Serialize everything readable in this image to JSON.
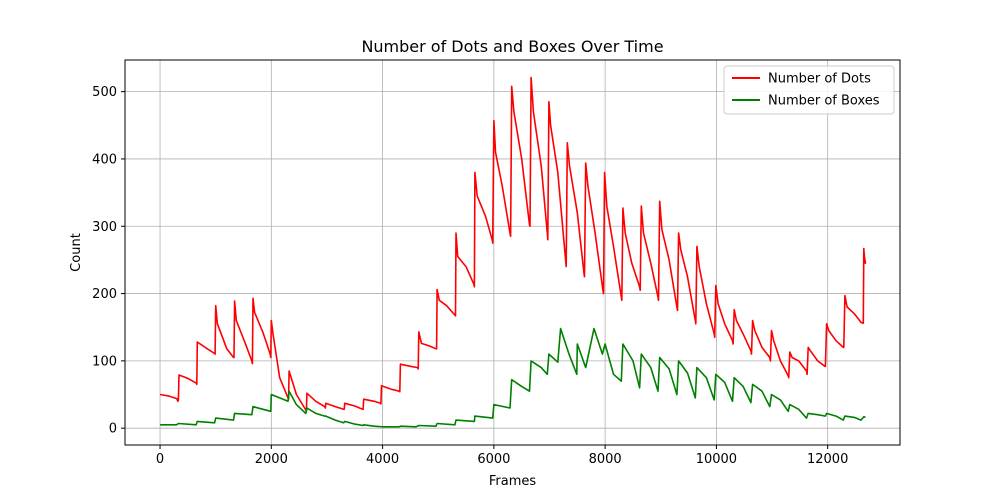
{
  "chart_data": {
    "type": "line",
    "title": "Number of Dots and Boxes Over Time",
    "xlabel": "Frames",
    "ylabel": "Count",
    "xlim": [
      -630,
      13300
    ],
    "ylim": [
      -25,
      547
    ],
    "xticks": [
      0,
      2000,
      4000,
      6000,
      8000,
      10000,
      12000
    ],
    "yticks": [
      0,
      100,
      200,
      300,
      400,
      500
    ],
    "grid": true,
    "legend_position": "top-right",
    "series": [
      {
        "name": "Number of Dots",
        "color": "#ff0000",
        "points": [
          [
            0,
            50
          ],
          [
            150,
            48
          ],
          [
            300,
            44
          ],
          [
            320,
            40
          ],
          [
            330,
            42
          ],
          [
            340,
            79
          ],
          [
            500,
            74
          ],
          [
            650,
            67
          ],
          [
            660,
            65
          ],
          [
            670,
            128
          ],
          [
            850,
            118
          ],
          [
            980,
            111
          ],
          [
            990,
            110
          ],
          [
            1000,
            182
          ],
          [
            1030,
            155
          ],
          [
            1200,
            118
          ],
          [
            1320,
            105
          ],
          [
            1330,
            105
          ],
          [
            1340,
            189
          ],
          [
            1370,
            160
          ],
          [
            1550,
            122
          ],
          [
            1650,
            100
          ],
          [
            1660,
            96
          ],
          [
            1670,
            193
          ],
          [
            1700,
            172
          ],
          [
            1850,
            142
          ],
          [
            1980,
            110
          ],
          [
            1990,
            105
          ],
          [
            2000,
            160
          ],
          [
            2030,
            140
          ],
          [
            2150,
            75
          ],
          [
            2300,
            45
          ],
          [
            2310,
            43
          ],
          [
            2320,
            85
          ],
          [
            2450,
            50
          ],
          [
            2620,
            27
          ],
          [
            2630,
            25
          ],
          [
            2640,
            52
          ],
          [
            2800,
            40
          ],
          [
            2960,
            32
          ],
          [
            2970,
            30
          ],
          [
            2980,
            37
          ],
          [
            3150,
            32
          ],
          [
            3300,
            28
          ],
          [
            3310,
            28
          ],
          [
            3320,
            37
          ],
          [
            3500,
            33
          ],
          [
            3640,
            28
          ],
          [
            3650,
            28
          ],
          [
            3660,
            43
          ],
          [
            3850,
            40
          ],
          [
            3960,
            37
          ],
          [
            3970,
            36
          ],
          [
            3980,
            63
          ],
          [
            4150,
            58
          ],
          [
            4300,
            55
          ],
          [
            4310,
            54
          ],
          [
            4320,
            95
          ],
          [
            4500,
            92
          ],
          [
            4630,
            90
          ],
          [
            4640,
            88
          ],
          [
            4650,
            143
          ],
          [
            4700,
            126
          ],
          [
            4850,
            122
          ],
          [
            4960,
            118
          ],
          [
            4970,
            118
          ],
          [
            4980,
            206
          ],
          [
            5020,
            190
          ],
          [
            5150,
            182
          ],
          [
            5300,
            168
          ],
          [
            5310,
            167
          ],
          [
            5320,
            290
          ],
          [
            5350,
            255
          ],
          [
            5500,
            240
          ],
          [
            5640,
            214
          ],
          [
            5650,
            210
          ],
          [
            5660,
            380
          ],
          [
            5700,
            345
          ],
          [
            5850,
            315
          ],
          [
            5970,
            280
          ],
          [
            5980,
            275
          ],
          [
            6000,
            457
          ],
          [
            6030,
            410
          ],
          [
            6150,
            360
          ],
          [
            6290,
            290
          ],
          [
            6300,
            285
          ],
          [
            6320,
            508
          ],
          [
            6360,
            470
          ],
          [
            6500,
            400
          ],
          [
            6640,
            302
          ],
          [
            6650,
            300
          ],
          [
            6670,
            521
          ],
          [
            6710,
            470
          ],
          [
            6850,
            390
          ],
          [
            6960,
            290
          ],
          [
            6970,
            280
          ],
          [
            6990,
            485
          ],
          [
            7020,
            450
          ],
          [
            7150,
            380
          ],
          [
            7290,
            250
          ],
          [
            7300,
            240
          ],
          [
            7320,
            424
          ],
          [
            7360,
            390
          ],
          [
            7500,
            320
          ],
          [
            7620,
            230
          ],
          [
            7630,
            225
          ],
          [
            7650,
            394
          ],
          [
            7690,
            360
          ],
          [
            7820,
            290
          ],
          [
            7960,
            205
          ],
          [
            7970,
            200
          ],
          [
            7990,
            380
          ],
          [
            8030,
            330
          ],
          [
            8150,
            270
          ],
          [
            8290,
            195
          ],
          [
            8300,
            190
          ],
          [
            8320,
            327
          ],
          [
            8360,
            290
          ],
          [
            8480,
            245
          ],
          [
            8620,
            210
          ],
          [
            8630,
            205
          ],
          [
            8650,
            330
          ],
          [
            8690,
            290
          ],
          [
            8820,
            245
          ],
          [
            8950,
            195
          ],
          [
            8960,
            190
          ],
          [
            8980,
            337
          ],
          [
            9020,
            295
          ],
          [
            9150,
            250
          ],
          [
            9290,
            180
          ],
          [
            9300,
            175
          ],
          [
            9320,
            290
          ],
          [
            9360,
            265
          ],
          [
            9480,
            225
          ],
          [
            9620,
            160
          ],
          [
            9630,
            155
          ],
          [
            9650,
            270
          ],
          [
            9690,
            240
          ],
          [
            9820,
            185
          ],
          [
            9960,
            140
          ],
          [
            9970,
            135
          ],
          [
            9990,
            212
          ],
          [
            10030,
            185
          ],
          [
            10150,
            155
          ],
          [
            10290,
            130
          ],
          [
            10300,
            125
          ],
          [
            10320,
            176
          ],
          [
            10360,
            160
          ],
          [
            10480,
            140
          ],
          [
            10620,
            115
          ],
          [
            10630,
            110
          ],
          [
            10650,
            160
          ],
          [
            10690,
            145
          ],
          [
            10820,
            120
          ],
          [
            10960,
            105
          ],
          [
            10970,
            100
          ],
          [
            10990,
            145
          ],
          [
            11030,
            130
          ],
          [
            11150,
            100
          ],
          [
            11290,
            78
          ],
          [
            11300,
            75
          ],
          [
            11320,
            113
          ],
          [
            11360,
            105
          ],
          [
            11480,
            100
          ],
          [
            11620,
            85
          ],
          [
            11630,
            80
          ],
          [
            11650,
            120
          ],
          [
            11690,
            115
          ],
          [
            11820,
            100
          ],
          [
            11950,
            92
          ],
          [
            11960,
            92
          ],
          [
            11980,
            155
          ],
          [
            12020,
            145
          ],
          [
            12150,
            130
          ],
          [
            12280,
            120
          ],
          [
            12290,
            120
          ],
          [
            12310,
            197
          ],
          [
            12350,
            180
          ],
          [
            12480,
            170
          ],
          [
            12600,
            157
          ],
          [
            12640,
            156
          ],
          [
            12650,
            267
          ],
          [
            12660,
            255
          ],
          [
            12680,
            244
          ]
        ]
      },
      {
        "name": "Number of Boxes",
        "color": "#008000",
        "points": [
          [
            0,
            5
          ],
          [
            300,
            5
          ],
          [
            330,
            7
          ],
          [
            650,
            5
          ],
          [
            670,
            10
          ],
          [
            980,
            8
          ],
          [
            1000,
            15
          ],
          [
            1320,
            12
          ],
          [
            1340,
            22
          ],
          [
            1650,
            20
          ],
          [
            1670,
            32
          ],
          [
            1850,
            28
          ],
          [
            1990,
            25
          ],
          [
            2000,
            50
          ],
          [
            2150,
            45
          ],
          [
            2300,
            40
          ],
          [
            2320,
            55
          ],
          [
            2450,
            35
          ],
          [
            2620,
            22
          ],
          [
            2640,
            30
          ],
          [
            2800,
            22
          ],
          [
            2960,
            18
          ],
          [
            2980,
            18
          ],
          [
            3150,
            12
          ],
          [
            3300,
            8
          ],
          [
            3320,
            10
          ],
          [
            3500,
            6
          ],
          [
            3650,
            4
          ],
          [
            3660,
            5
          ],
          [
            3850,
            3
          ],
          [
            4000,
            2
          ],
          [
            4300,
            2
          ],
          [
            4320,
            3
          ],
          [
            4600,
            2
          ],
          [
            4650,
            4
          ],
          [
            4960,
            3
          ],
          [
            4980,
            7
          ],
          [
            5300,
            5
          ],
          [
            5320,
            12
          ],
          [
            5650,
            10
          ],
          [
            5660,
            18
          ],
          [
            5980,
            15
          ],
          [
            6000,
            35
          ],
          [
            6290,
            30
          ],
          [
            6320,
            72
          ],
          [
            6500,
            62
          ],
          [
            6640,
            55
          ],
          [
            6670,
            100
          ],
          [
            6850,
            90
          ],
          [
            6960,
            80
          ],
          [
            6990,
            110
          ],
          [
            7150,
            98
          ],
          [
            7200,
            148
          ],
          [
            7350,
            110
          ],
          [
            7490,
            80
          ],
          [
            7500,
            125
          ],
          [
            7650,
            90
          ],
          [
            7800,
            148
          ],
          [
            7950,
            110
          ],
          [
            8000,
            125
          ],
          [
            8150,
            80
          ],
          [
            8290,
            70
          ],
          [
            8320,
            125
          ],
          [
            8500,
            100
          ],
          [
            8620,
            60
          ],
          [
            8650,
            110
          ],
          [
            8820,
            90
          ],
          [
            8950,
            55
          ],
          [
            8980,
            105
          ],
          [
            9150,
            88
          ],
          [
            9290,
            50
          ],
          [
            9320,
            100
          ],
          [
            9480,
            82
          ],
          [
            9620,
            45
          ],
          [
            9650,
            90
          ],
          [
            9820,
            75
          ],
          [
            9960,
            42
          ],
          [
            9990,
            80
          ],
          [
            10150,
            68
          ],
          [
            10290,
            40
          ],
          [
            10320,
            75
          ],
          [
            10480,
            62
          ],
          [
            10620,
            38
          ],
          [
            10650,
            65
          ],
          [
            10820,
            55
          ],
          [
            10960,
            32
          ],
          [
            10990,
            50
          ],
          [
            11150,
            42
          ],
          [
            11290,
            25
          ],
          [
            11320,
            35
          ],
          [
            11480,
            28
          ],
          [
            11620,
            15
          ],
          [
            11650,
            22
          ],
          [
            11820,
            20
          ],
          [
            11960,
            18
          ],
          [
            11980,
            22
          ],
          [
            12150,
            18
          ],
          [
            12280,
            12
          ],
          [
            12310,
            18
          ],
          [
            12480,
            16
          ],
          [
            12600,
            12
          ],
          [
            12650,
            17
          ],
          [
            12680,
            16
          ]
        ]
      }
    ]
  }
}
